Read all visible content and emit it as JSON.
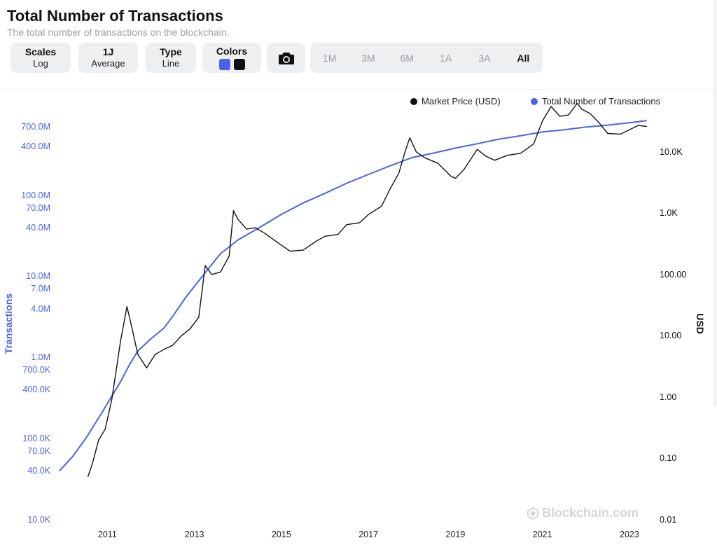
{
  "header": {
    "title": "Total Number of Transactions",
    "subtitle": "The total number of transactions on the blockchain."
  },
  "controls": {
    "scales": {
      "label": "Scales",
      "value": "Log"
    },
    "period": {
      "label": "1J",
      "value": "Average"
    },
    "type": {
      "label": "Type",
      "value": "Line"
    },
    "colors": {
      "label": "Colors",
      "series_colors": [
        "#4a63e8",
        "#111111"
      ]
    },
    "camera_icon": "camera-icon",
    "ranges": [
      "1M",
      "3M",
      "6M",
      "1A",
      "3A",
      "All"
    ],
    "active_range": "All"
  },
  "legend": {
    "market_price": "Market Price (USD)",
    "transactions": "Total Number of Transactions"
  },
  "watermark": "Blockchain.com",
  "chart_data": {
    "type": "line",
    "title": "Total Number of Transactions",
    "subtitle": "The total number of transactions on the blockchain.",
    "ylabel_left": "Transactions",
    "ylabel_right": "USD",
    "scale": "log",
    "legend_position": "top-right",
    "grid": false,
    "x_ticks": [
      "2011",
      "2013",
      "2015",
      "2017",
      "2019",
      "2021",
      "2023"
    ],
    "y_left_ticks": [
      "10.0K",
      "40.0K",
      "70.0K",
      "100.0K",
      "400.0K",
      "700.0K",
      "1.0M",
      "4.0M",
      "7.0M",
      "10.0M",
      "40.0M",
      "70.0M",
      "100.0M",
      "400.0M",
      "700.0M"
    ],
    "y_right_ticks": [
      "0.01",
      "0.10",
      "1.00",
      "10.00",
      "100.00",
      "1.0K",
      "10.0K"
    ],
    "ylim_left": [
      10000,
      1000000000
    ],
    "ylim_right": [
      0.01,
      100000
    ],
    "xlim": [
      2009.9,
      2023.5
    ],
    "series": [
      {
        "name": "Total Number of Transactions",
        "color": "#4a63e8",
        "axis": "left",
        "x": [
          2009.9,
          2010.2,
          2010.5,
          2010.8,
          2011.0,
          2011.3,
          2011.5,
          2011.7,
          2012.0,
          2012.3,
          2012.5,
          2012.8,
          2013.0,
          2013.3,
          2013.6,
          2014.0,
          2014.5,
          2015.0,
          2015.5,
          2016.0,
          2016.5,
          2017.0,
          2017.5,
          2018.0,
          2018.5,
          2019.0,
          2019.5,
          2020.0,
          2020.5,
          2021.0,
          2021.5,
          2022.0,
          2022.5,
          2023.0,
          2023.4
        ],
        "values": [
          40000,
          60000,
          100000,
          180000,
          270000,
          500000,
          800000,
          1200000,
          1700000,
          2300000,
          3200000,
          5500000,
          7500000,
          12000000,
          19000000,
          28000000,
          40000000,
          58000000,
          80000000,
          105000000,
          140000000,
          180000000,
          230000000,
          290000000,
          330000000,
          380000000,
          430000000,
          490000000,
          540000000,
          600000000,
          640000000,
          690000000,
          730000000,
          780000000,
          830000000
        ]
      },
      {
        "name": "Market Price (USD)",
        "color": "#111111",
        "axis": "right",
        "x": [
          2010.55,
          2010.65,
          2010.8,
          2010.95,
          2011.1,
          2011.3,
          2011.45,
          2011.55,
          2011.7,
          2011.9,
          2012.1,
          2012.3,
          2012.5,
          2012.7,
          2012.9,
          2013.1,
          2013.25,
          2013.4,
          2013.6,
          2013.8,
          2013.9,
          2014.0,
          2014.2,
          2014.4,
          2014.6,
          2014.8,
          2015.0,
          2015.2,
          2015.5,
          2015.8,
          2016.0,
          2016.3,
          2016.5,
          2016.8,
          2017.0,
          2017.3,
          2017.5,
          2017.7,
          2017.85,
          2017.95,
          2018.1,
          2018.3,
          2018.6,
          2018.9,
          2019.0,
          2019.2,
          2019.5,
          2019.7,
          2019.9,
          2020.2,
          2020.5,
          2020.8,
          2021.0,
          2021.2,
          2021.4,
          2021.6,
          2021.8,
          2021.9,
          2022.1,
          2022.3,
          2022.5,
          2022.8,
          2023.0,
          2023.2,
          2023.4
        ],
        "values": [
          0.05,
          0.08,
          0.2,
          0.3,
          0.9,
          8,
          30,
          15,
          5,
          3,
          5,
          6,
          7,
          10,
          13,
          20,
          140,
          100,
          110,
          200,
          1100,
          800,
          550,
          580,
          480,
          380,
          300,
          240,
          250,
          350,
          420,
          450,
          650,
          700,
          950,
          1300,
          2500,
          4500,
          10500,
          17000,
          10000,
          8000,
          6500,
          4000,
          3700,
          5200,
          11000,
          8500,
          7300,
          8800,
          9500,
          13500,
          32000,
          55000,
          38000,
          40000,
          62000,
          50000,
          42000,
          30000,
          20000,
          19500,
          23000,
          27000,
          26000
        ]
      }
    ]
  }
}
